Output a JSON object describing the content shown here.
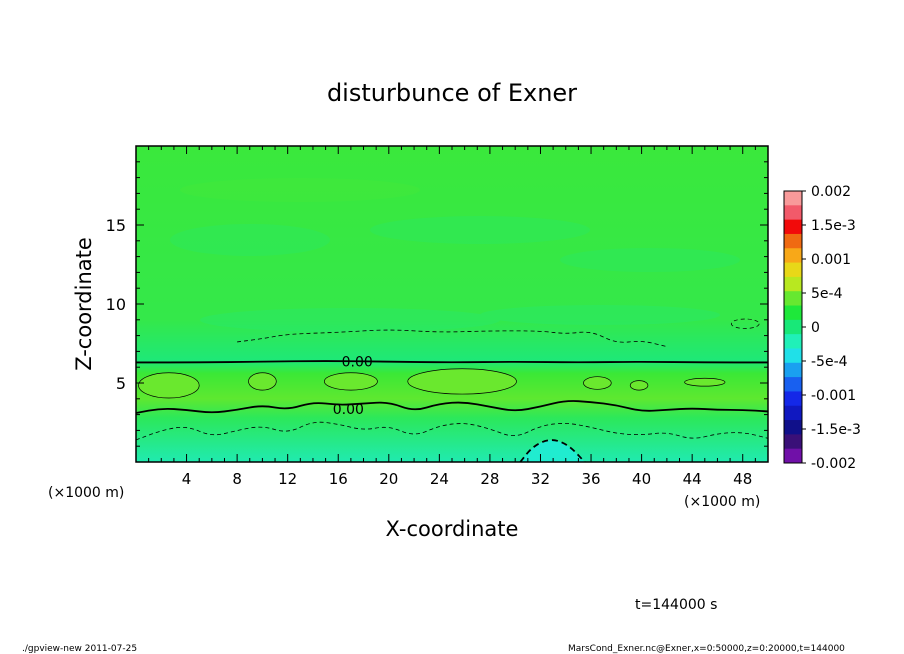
{
  "chart_data": {
    "type": "heatmap",
    "title": "disturbunce of Exner",
    "xlabel": "X-coordinate",
    "ylabel": "Z-coordinate",
    "xunit_left": "(×1000 m)",
    "xunit_right": "(×1000 m)",
    "xlim": [
      0,
      50
    ],
    "ylim": [
      0,
      20
    ],
    "xticks": [
      4,
      8,
      12,
      16,
      20,
      24,
      28,
      32,
      36,
      40,
      44,
      48
    ],
    "yticks": [
      5,
      10,
      15
    ],
    "colorbar": {
      "vmin": -0.002,
      "vmax": 0.002,
      "labels": [
        "0.002",
        "1.5e-3",
        "0.001",
        "5e-4",
        "0",
        "-5e-4",
        "-0.001",
        "-1.5e-3",
        "-0.002"
      ],
      "colors": [
        "#f89a9a",
        "#f25a6a",
        "#f20a0a",
        "#f06a12",
        "#f8a818",
        "#e8d818",
        "#b8e820",
        "#66e830",
        "#1ee83a",
        "#18e878",
        "#20f0b8",
        "#20e0e8",
        "#1aa0f0",
        "#1860f0",
        "#1428e8",
        "#1018c0",
        "#10108a",
        "#3a1078",
        "#7010a8"
      ]
    },
    "contour_labels": [
      {
        "text": "0.00",
        "x": 17.5,
        "z": 6.35
      },
      {
        "text": "0.00",
        "x": 16.8,
        "z": 3.35
      }
    ],
    "zero_contour_upper": [
      [
        0,
        6.3
      ],
      [
        5,
        6.3
      ],
      [
        10,
        6.35
      ],
      [
        15,
        6.4
      ],
      [
        20,
        6.35
      ],
      [
        25,
        6.3
      ],
      [
        30,
        6.35
      ],
      [
        35,
        6.3
      ],
      [
        40,
        6.35
      ],
      [
        45,
        6.3
      ],
      [
        50,
        6.3
      ]
    ],
    "zero_contour_lower": [
      [
        0,
        3.1
      ],
      [
        2,
        3.4
      ],
      [
        4,
        3.3
      ],
      [
        6,
        3.1
      ],
      [
        8,
        3.3
      ],
      [
        10,
        3.6
      ],
      [
        12,
        3.3
      ],
      [
        14,
        3.8
      ],
      [
        16,
        3.6
      ],
      [
        18,
        3.7
      ],
      [
        20,
        3.8
      ],
      [
        22,
        3.2
      ],
      [
        24,
        3.7
      ],
      [
        26,
        3.8
      ],
      [
        28,
        3.5
      ],
      [
        30,
        3.2
      ],
      [
        32,
        3.5
      ],
      [
        34,
        3.9
      ],
      [
        36,
        3.8
      ],
      [
        38,
        3.6
      ],
      [
        40,
        3.2
      ],
      [
        42,
        3.3
      ],
      [
        44,
        3.4
      ],
      [
        46,
        3.3
      ],
      [
        48,
        3.3
      ],
      [
        50,
        3.2
      ]
    ],
    "neg_contour_dashed_upper": [
      [
        8,
        7.6
      ],
      [
        10,
        7.8
      ],
      [
        12,
        8.1
      ],
      [
        16,
        8.2
      ],
      [
        20,
        8.4
      ],
      [
        24,
        8.2
      ],
      [
        28,
        8.3
      ],
      [
        32,
        8.3
      ],
      [
        34,
        8.1
      ],
      [
        36,
        8.3
      ],
      [
        38,
        7.5
      ],
      [
        40,
        7.7
      ],
      [
        42,
        7.3
      ]
    ],
    "neg_contour_dashed_lower": [
      [
        0,
        1.4
      ],
      [
        2,
        2.0
      ],
      [
        4,
        2.3
      ],
      [
        6,
        1.6
      ],
      [
        8,
        2.0
      ],
      [
        10,
        2.3
      ],
      [
        12,
        1.8
      ],
      [
        14,
        2.6
      ],
      [
        16,
        2.4
      ],
      [
        18,
        2.0
      ],
      [
        20,
        2.3
      ],
      [
        22,
        1.6
      ],
      [
        24,
        2.3
      ],
      [
        26,
        2.5
      ],
      [
        28,
        2.1
      ],
      [
        30,
        1.5
      ],
      [
        32,
        2.3
      ],
      [
        34,
        2.5
      ],
      [
        36,
        2.2
      ],
      [
        38,
        1.8
      ],
      [
        40,
        1.7
      ],
      [
        42,
        1.9
      ],
      [
        44,
        1.4
      ],
      [
        46,
        1.8
      ],
      [
        48,
        1.9
      ],
      [
        50,
        1.5
      ]
    ],
    "neg_contour_bold_dashed": [
      [
        30.4,
        0
      ],
      [
        31.4,
        1.0
      ],
      [
        32.8,
        1.5
      ],
      [
        34.2,
        1.1
      ],
      [
        35.5,
        0
      ]
    ],
    "pos_contour_blobs": [
      {
        "cx": 2.6,
        "cz": 4.85,
        "rx": 2.4,
        "rz": 0.8
      },
      {
        "cx": 10.0,
        "cz": 5.1,
        "rx": 1.1,
        "rz": 0.55
      },
      {
        "cx": 17.0,
        "cz": 5.1,
        "rx": 2.1,
        "rz": 0.55
      },
      {
        "cx": 25.8,
        "cz": 5.1,
        "rx": 4.3,
        "rz": 0.8
      },
      {
        "cx": 36.5,
        "cz": 5.0,
        "rx": 1.1,
        "rz": 0.4
      },
      {
        "cx": 39.8,
        "cz": 4.85,
        "rx": 0.7,
        "rz": 0.3
      },
      {
        "cx": 45.0,
        "cz": 5.05,
        "rx": 1.6,
        "rz": 0.25
      }
    ],
    "neg_contour_small": [
      {
        "cx": 48.2,
        "cz": 8.75,
        "rx": 1.1,
        "rz": 0.3
      }
    ]
  },
  "footer": {
    "time_label": "t=144000 s",
    "program": "./gpview-new  2011-07-25",
    "source": "MarsCond_Exner.nc@Exner,x=0:50000,z=0:20000,t=144000"
  }
}
